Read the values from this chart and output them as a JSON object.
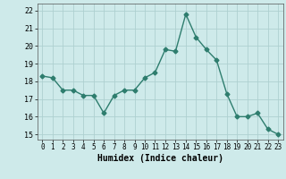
{
  "x": [
    0,
    1,
    2,
    3,
    4,
    5,
    6,
    7,
    8,
    9,
    10,
    11,
    12,
    13,
    14,
    15,
    16,
    17,
    18,
    19,
    20,
    21,
    22,
    23
  ],
  "y": [
    18.3,
    18.2,
    17.5,
    17.5,
    17.2,
    17.2,
    16.2,
    17.2,
    17.5,
    17.5,
    18.2,
    18.5,
    19.8,
    19.7,
    21.8,
    20.5,
    19.8,
    19.2,
    17.3,
    16.0,
    16.0,
    16.2,
    15.3,
    15.0
  ],
  "line_color": "#2e7d6e",
  "marker": "D",
  "marker_size": 2.5,
  "bg_color": "#ceeaea",
  "grid_color": "#aed0d0",
  "xlabel": "Humidex (Indice chaleur)",
  "xlim": [
    -0.5,
    23.5
  ],
  "ylim": [
    14.7,
    22.4
  ],
  "yticks": [
    15,
    16,
    17,
    18,
    19,
    20,
    21,
    22
  ],
  "xticks": [
    0,
    1,
    2,
    3,
    4,
    5,
    6,
    7,
    8,
    9,
    10,
    11,
    12,
    13,
    14,
    15,
    16,
    17,
    18,
    19,
    20,
    21,
    22,
    23
  ]
}
